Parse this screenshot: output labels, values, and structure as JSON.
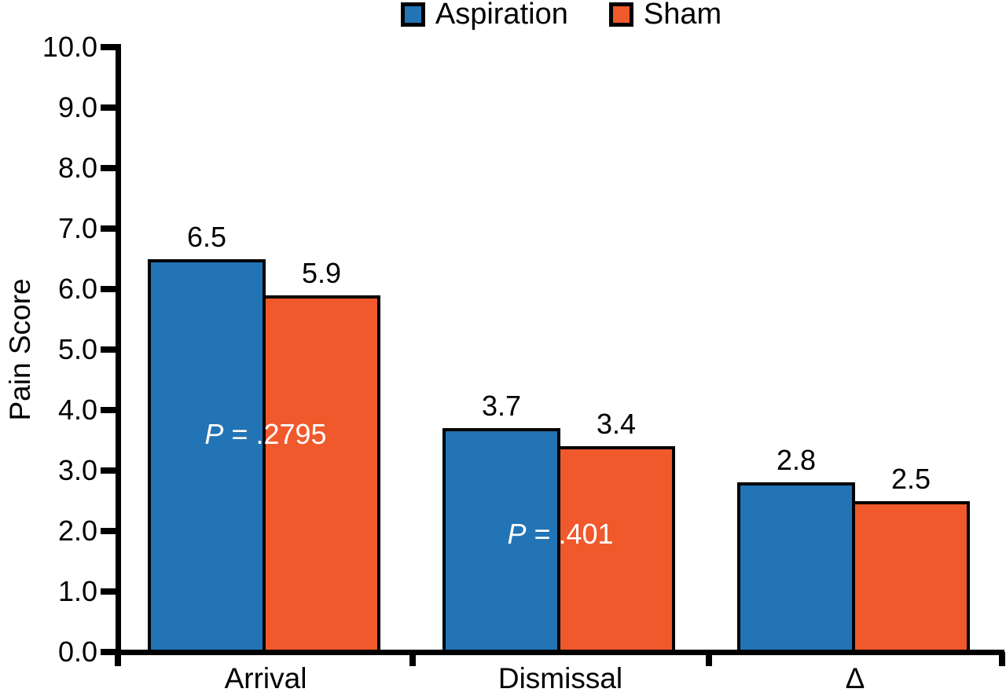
{
  "figure": {
    "background": "#FFFFFF",
    "axis_color": "#000000"
  },
  "chart_data": {
    "type": "bar",
    "title": "",
    "xlabel": "",
    "ylabel": "Pain Score",
    "ylim": [
      0,
      10
    ],
    "ytick_step": 1,
    "ytick_labels": [
      "0.0",
      "1.0",
      "2.0",
      "3.0",
      "4.0",
      "5.0",
      "6.0",
      "7.0",
      "8.0",
      "9.0",
      "10.0"
    ],
    "grid": false,
    "legend_position": "top-center",
    "categories": [
      "Arrival",
      "Dismissal",
      "Δ"
    ],
    "series": [
      {
        "name": "Aspiration",
        "color": "#2274B5",
        "values": [
          6.5,
          3.7,
          2.8
        ],
        "labels": [
          "6.5",
          "3.7",
          "2.8"
        ]
      },
      {
        "name": "Sham",
        "color": "#F0592B",
        "values": [
          5.9,
          3.4,
          2.5
        ],
        "labels": [
          "5.9",
          "3.4",
          "2.5"
        ]
      }
    ],
    "annotations": [
      {
        "group": 0,
        "prefix": "P",
        "text": " = .2795",
        "y_value": 3.6,
        "color": "#FFFFFF"
      },
      {
        "group": 1,
        "prefix": "P",
        "text": " = .401",
        "y_value": 1.95,
        "color": "#FFFFFF"
      }
    ]
  }
}
